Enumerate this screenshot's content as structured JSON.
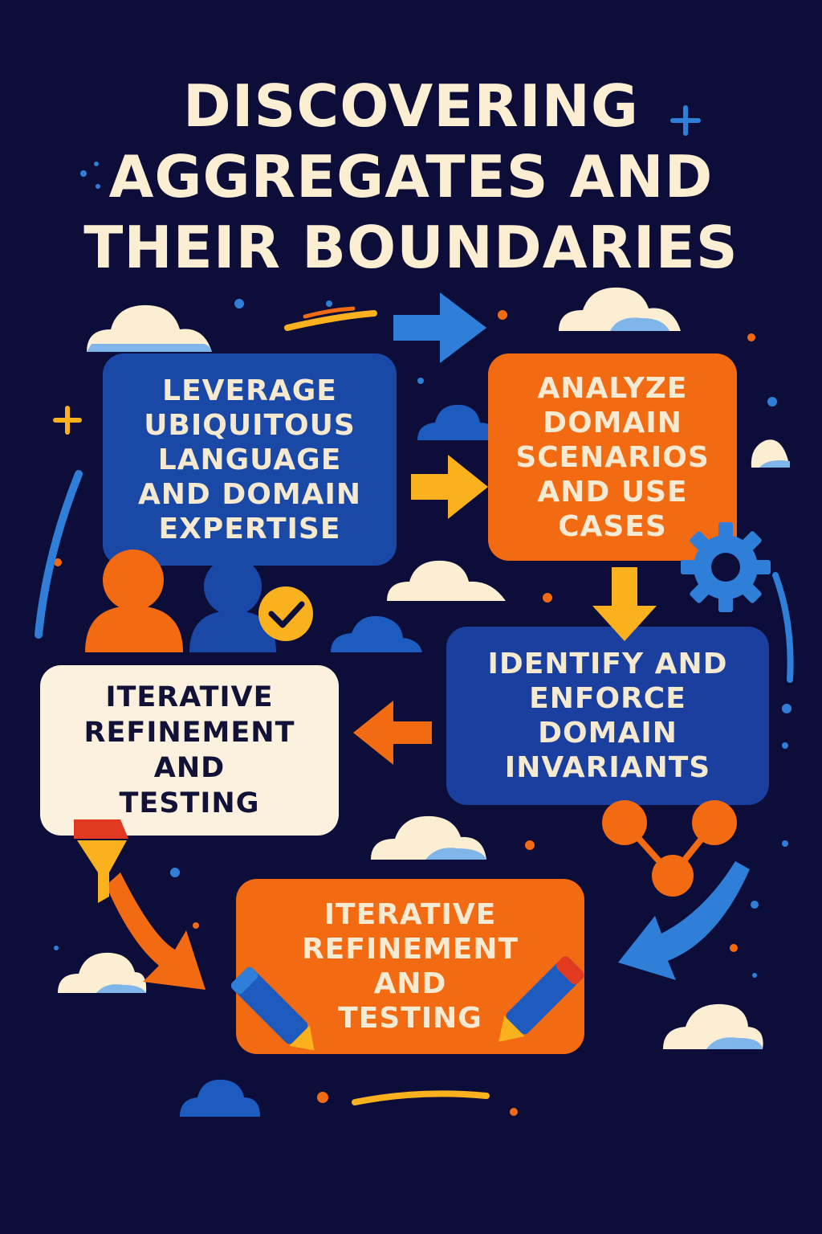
{
  "title": {
    "lines": [
      "DISCOVERING",
      "AGGREGATES AND",
      "THEIR BOUNDARIES"
    ]
  },
  "steps": [
    {
      "lines": [
        "LEVERAGE",
        "UBIQUITOUS",
        "LANGUAGE",
        "AND DOMAIN",
        "EXPERTISE"
      ],
      "color": "#1a48a6"
    },
    {
      "lines": [
        "ANALYZE",
        "DOMAIN",
        "SCENARIOS",
        "AND USE",
        "CASES"
      ],
      "color": "#f26a12"
    },
    {
      "lines": [
        "IDENTIFY AND",
        "ENFORCE",
        "DOMAIN",
        "INVARIANTS"
      ],
      "color": "#1a3f9e"
    },
    {
      "lines": [
        "ITERATIVE",
        "REFINEMENT",
        "AND",
        "TESTING"
      ],
      "color": "#fbf1de"
    },
    {
      "lines": [
        "ITERATIVE",
        "REFINEMENT",
        "AND",
        "TESTING"
      ],
      "color": "#f26a12"
    }
  ],
  "colors": {
    "background": "#0d0d3a",
    "blue": "#1a48a6",
    "light_blue": "#2f7fd8",
    "orange": "#f26a12",
    "yellow": "#f9b21d",
    "cream": "#fbeed2"
  },
  "icons": [
    "cloud-icon",
    "arrow-right-icon",
    "arrow-down-icon",
    "arrow-left-icon",
    "gear-icon",
    "people-icon",
    "check-icon",
    "pencil-icon",
    "funnel-icon",
    "network-icon"
  ]
}
